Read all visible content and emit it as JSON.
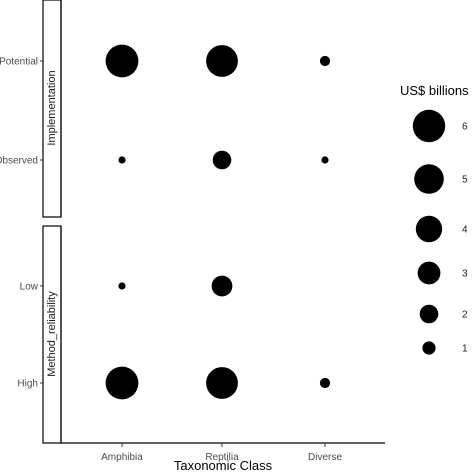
{
  "chart_data": {
    "type": "bubble",
    "x_categories": [
      "Amphibia",
      "Reptilia",
      "Diverse"
    ],
    "xlabel": "Taxonomic Class",
    "facets": [
      {
        "strip_label": "Implementation",
        "y_categories": [
          "Potential",
          "Observed"
        ],
        "points": [
          {
            "x": "Amphibia",
            "y": "Potential",
            "value": 6.2
          },
          {
            "x": "Reptilia",
            "y": "Potential",
            "value": 5.8
          },
          {
            "x": "Diverse",
            "y": "Potential",
            "value": 0.6
          },
          {
            "x": "Amphibia",
            "y": "Observed",
            "value": 0.3
          },
          {
            "x": "Reptilia",
            "y": "Observed",
            "value": 2.0
          },
          {
            "x": "Diverse",
            "y": "Observed",
            "value": 0.3
          }
        ]
      },
      {
        "strip_label": "Method_reliability",
        "y_categories": [
          "Low",
          "High"
        ],
        "points": [
          {
            "x": "Amphibia",
            "y": "Low",
            "value": 0.3
          },
          {
            "x": "Reptilia",
            "y": "Low",
            "value": 2.5
          },
          {
            "x": "Amphibia",
            "y": "High",
            "value": 6.2
          },
          {
            "x": "Reptilia",
            "y": "High",
            "value": 5.8
          },
          {
            "x": "Diverse",
            "y": "High",
            "value": 0.6
          }
        ]
      }
    ],
    "legend": {
      "title": "US$ billions",
      "entries": [
        6,
        5,
        4,
        3,
        2,
        1
      ],
      "placement": "right"
    },
    "point_color": "#000000"
  }
}
